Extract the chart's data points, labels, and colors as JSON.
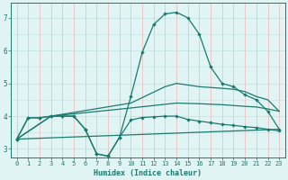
{
  "xlabel": "Humidex (Indice chaleur)",
  "background_color": "#e0f4f4",
  "grid_color_h": "#c8e8e8",
  "grid_color_v": "#f0c0c0",
  "line_color": "#1a7a6e",
  "xlim": [
    -0.5,
    23.5
  ],
  "ylim": [
    2.75,
    7.45
  ],
  "xticks": [
    0,
    1,
    2,
    3,
    4,
    5,
    6,
    7,
    8,
    9,
    10,
    11,
    12,
    13,
    14,
    15,
    16,
    17,
    18,
    19,
    20,
    21,
    22,
    23
  ],
  "yticks": [
    3,
    4,
    5,
    6,
    7
  ],
  "line1_x": [
    0,
    1,
    2,
    3,
    4,
    5,
    6,
    7,
    8,
    9,
    10,
    11,
    12,
    13,
    14,
    15,
    16,
    17,
    18,
    19,
    20,
    21,
    22,
    23
  ],
  "line1_y": [
    3.3,
    3.95,
    3.95,
    4.0,
    4.0,
    4.0,
    3.6,
    2.85,
    2.78,
    3.35,
    4.6,
    5.95,
    6.8,
    7.12,
    7.17,
    7.0,
    6.5,
    5.5,
    5.0,
    4.9,
    4.65,
    4.5,
    4.15,
    3.6
  ],
  "line2_x": [
    0,
    1,
    2,
    3,
    4,
    5,
    6,
    7,
    8,
    9,
    10,
    11,
    12,
    13,
    14,
    15,
    16,
    17,
    18,
    19,
    20,
    21,
    22,
    23
  ],
  "line2_y": [
    3.3,
    3.95,
    3.95,
    4.0,
    4.0,
    4.0,
    3.6,
    2.85,
    2.78,
    3.35,
    3.88,
    3.96,
    3.98,
    4.0,
    4.0,
    3.9,
    3.85,
    3.8,
    3.75,
    3.72,
    3.68,
    3.65,
    3.6,
    3.55
  ],
  "line3_x": [
    0,
    23
  ],
  "line3_y": [
    3.3,
    3.6
  ],
  "line4_x": [
    0,
    3,
    10,
    14,
    16,
    18,
    20,
    21,
    22,
    23
  ],
  "line4_y": [
    3.3,
    4.0,
    4.25,
    4.4,
    4.38,
    4.35,
    4.3,
    4.28,
    4.22,
    4.15
  ],
  "line5_x": [
    0,
    3,
    10,
    13,
    14,
    16,
    18,
    19,
    20,
    21,
    22,
    23
  ],
  "line5_y": [
    3.3,
    4.0,
    4.4,
    4.9,
    5.0,
    4.9,
    4.85,
    4.82,
    4.75,
    4.6,
    4.5,
    4.15
  ],
  "markersize": 2.2,
  "linewidth": 0.9
}
